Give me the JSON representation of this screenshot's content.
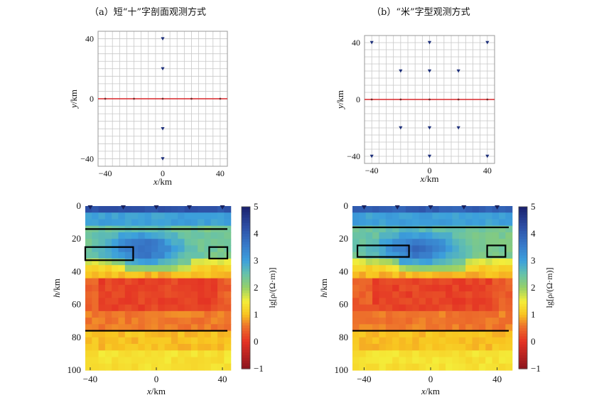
{
  "titles": {
    "a": "（a）短“十”字剖面观测方式",
    "b": "（b）“米”字型观测方式"
  },
  "colorbar_label": "lg[ρ/(Ω·m)]",
  "colors": {
    "line_red": "#d9262a",
    "station_blue": "#1d2f7a",
    "grid": "#c8c8c8",
    "boundary": "#000000"
  },
  "chart_data": [
    {
      "type": "scatter",
      "title": "（a）短“十”字剖面观测方式",
      "xlabel": "x/km",
      "ylabel": "y/km",
      "xlim": [
        -45,
        45
      ],
      "ylim": [
        -45,
        45
      ],
      "xticks": [
        -40,
        0,
        40
      ],
      "yticks": [
        40,
        0,
        -40
      ],
      "grid": true,
      "profile_line": {
        "y": 0,
        "x": [
          -45,
          45
        ]
      },
      "series": [
        {
          "marker": "triangle",
          "points": [
            [
              0,
              40
            ],
            [
              0,
              20
            ],
            [
              0,
              -20
            ],
            [
              0,
              -40
            ]
          ]
        },
        {
          "marker": "dot",
          "points": [
            [
              -40,
              0
            ],
            [
              -20,
              0
            ],
            [
              0,
              0
            ],
            [
              20,
              0
            ],
            [
              40,
              0
            ]
          ]
        }
      ]
    },
    {
      "type": "scatter",
      "title": "（b）“米”字型观测方式",
      "xlabel": "x/km",
      "ylabel": "y/km",
      "xlim": [
        -45,
        45
      ],
      "ylim": [
        -45,
        45
      ],
      "xticks": [
        -40,
        0,
        40
      ],
      "yticks": [
        40,
        0,
        -40
      ],
      "grid": true,
      "profile_line": {
        "y": 0,
        "x": [
          -45,
          45
        ]
      },
      "series": [
        {
          "marker": "triangle",
          "points": [
            [
              -40,
              40
            ],
            [
              0,
              40
            ],
            [
              40,
              40
            ],
            [
              -20,
              20
            ],
            [
              0,
              20
            ],
            [
              20,
              20
            ],
            [
              -20,
              -20
            ],
            [
              0,
              -20
            ],
            [
              20,
              -20
            ],
            [
              -40,
              -40
            ],
            [
              0,
              -40
            ],
            [
              40,
              -40
            ]
          ]
        },
        {
          "marker": "dot",
          "points": [
            [
              -40,
              0
            ],
            [
              -20,
              0
            ],
            [
              0,
              0
            ],
            [
              20,
              0
            ],
            [
              40,
              0
            ]
          ]
        }
      ]
    },
    {
      "type": "heatmap",
      "xlabel": "x/km",
      "ylabel": "h/km",
      "xlim": [
        -43,
        43
      ],
      "ylim": [
        0,
        100
      ],
      "xticks": [
        -40,
        0,
        40
      ],
      "yticks": [
        0,
        20,
        40,
        60,
        80,
        100
      ],
      "value_label": "lg[ρ/(Ω·m)]",
      "clim": [
        -1,
        5
      ],
      "colorbar_ticks": [
        5,
        4,
        3,
        2,
        1,
        0,
        -1
      ],
      "stations_x": [
        -40,
        -20,
        0,
        20,
        40
      ],
      "horizontal_boundaries_depth": [
        14,
        76
      ],
      "rectangles": [
        {
          "x": [
            -43,
            -14
          ],
          "depth": [
            25,
            33
          ]
        },
        {
          "x": [
            32,
            43
          ],
          "depth": [
            25,
            32
          ]
        }
      ]
    },
    {
      "type": "heatmap",
      "xlabel": "x/km",
      "ylabel": "h/km",
      "xlim": [
        -47,
        47
      ],
      "ylim": [
        0,
        100
      ],
      "xticks": [
        -40,
        0,
        40
      ],
      "yticks": [
        0,
        20,
        40,
        60,
        80,
        100
      ],
      "value_label": "lg[ρ/(Ω·m)]",
      "clim": [
        -1,
        5
      ],
      "colorbar_ticks": [
        5,
        4,
        3,
        2,
        1,
        0,
        -1
      ],
      "stations_x": [
        -40,
        -20,
        0,
        20,
        40
      ],
      "horizontal_boundaries_depth": [
        13,
        76
      ],
      "rectangles": [
        {
          "x": [
            -44,
            -13
          ],
          "depth": [
            24,
            31
          ]
        },
        {
          "x": [
            34,
            45
          ],
          "depth": [
            24,
            31
          ]
        }
      ]
    }
  ]
}
